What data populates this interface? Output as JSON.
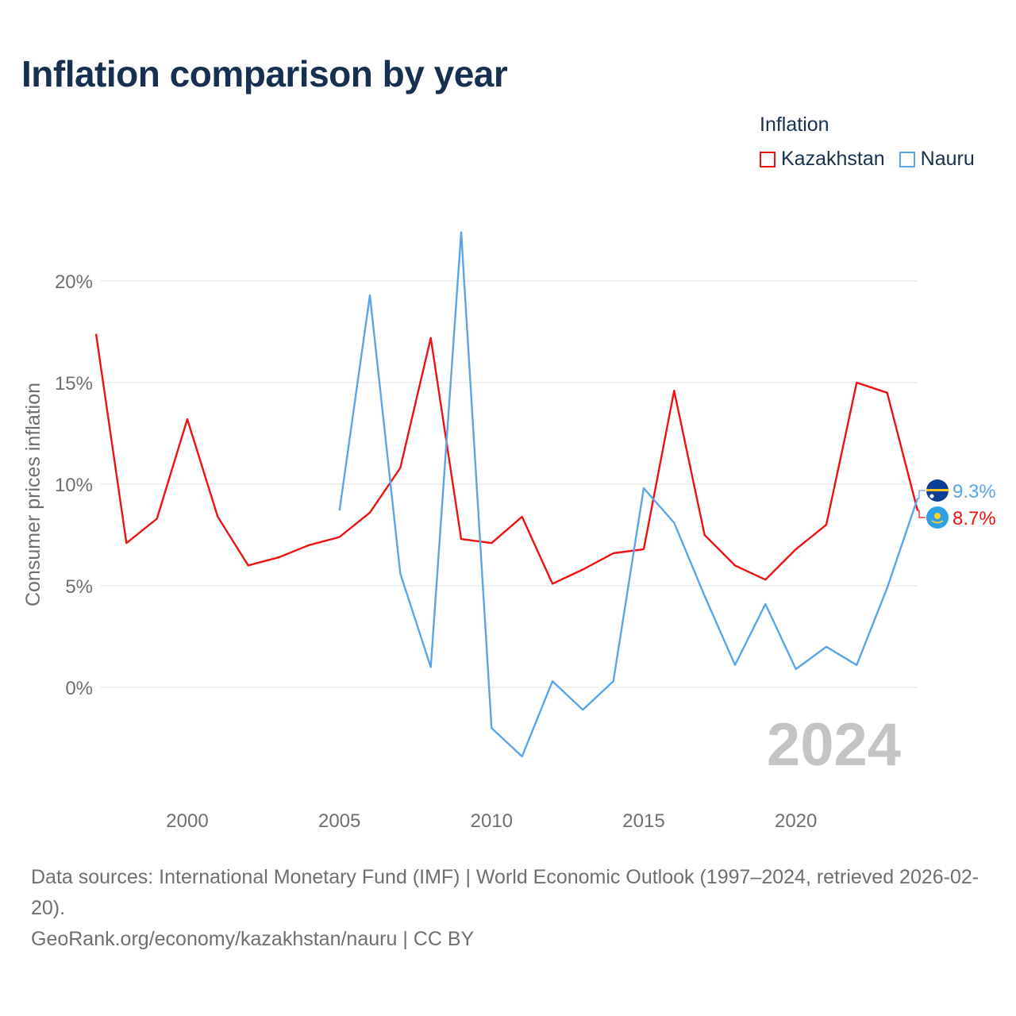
{
  "title": "Inflation comparison by year",
  "legend": {
    "title": "Inflation",
    "items": [
      {
        "label": "Kazakhstan",
        "color": "#ee1111"
      },
      {
        "label": "Nauru",
        "color": "#5aa5e8"
      }
    ]
  },
  "chart_data": {
    "type": "line",
    "title": "Inflation comparison by year",
    "xlabel": "",
    "ylabel": "Consumer prices inflation",
    "xlim": [
      1997,
      2024
    ],
    "ylim": [
      -5,
      23
    ],
    "grid": true,
    "x_ticks": [
      2000,
      2005,
      2010,
      2015,
      2020
    ],
    "x_tick_labels": [
      "2000",
      "2005",
      "2010",
      "2015",
      "2020"
    ],
    "y_ticks": [
      0,
      5,
      10,
      15,
      20
    ],
    "y_tick_labels": [
      "0%",
      "5%",
      "10%",
      "15%",
      "20%"
    ],
    "year_watermark": "2024",
    "series": [
      {
        "name": "Kazakhstan",
        "color": "#ee1111",
        "end_label": "8.7%",
        "points": [
          [
            1997,
            17.4
          ],
          [
            1998,
            7.1
          ],
          [
            1999,
            8.3
          ],
          [
            2000,
            13.2
          ],
          [
            2001,
            8.4
          ],
          [
            2002,
            6.0
          ],
          [
            2003,
            6.4
          ],
          [
            2004,
            7.0
          ],
          [
            2005,
            7.4
          ],
          [
            2006,
            8.6
          ],
          [
            2007,
            10.8
          ],
          [
            2008,
            17.2
          ],
          [
            2009,
            7.3
          ],
          [
            2010,
            7.1
          ],
          [
            2011,
            8.4
          ],
          [
            2012,
            5.1
          ],
          [
            2013,
            5.8
          ],
          [
            2014,
            6.6
          ],
          [
            2015,
            6.8
          ],
          [
            2016,
            14.6
          ],
          [
            2017,
            7.5
          ],
          [
            2018,
            6.0
          ],
          [
            2019,
            5.3
          ],
          [
            2020,
            6.8
          ],
          [
            2021,
            8.0
          ],
          [
            2022,
            15.0
          ],
          [
            2023,
            14.5
          ],
          [
            2024,
            8.7
          ]
        ]
      },
      {
        "name": "Nauru",
        "color": "#5aa5e8",
        "end_label": "9.3%",
        "points": [
          [
            2005,
            8.7
          ],
          [
            2006,
            19.3
          ],
          [
            2007,
            5.6
          ],
          [
            2008,
            1.0
          ],
          [
            2009,
            22.4
          ],
          [
            2010,
            -2.0
          ],
          [
            2011,
            -3.4
          ],
          [
            2012,
            0.3
          ],
          [
            2013,
            -1.1
          ],
          [
            2014,
            0.3
          ],
          [
            2015,
            9.8
          ],
          [
            2016,
            8.1
          ],
          [
            2017,
            4.5
          ],
          [
            2018,
            1.1
          ],
          [
            2019,
            4.1
          ],
          [
            2020,
            0.9
          ],
          [
            2021,
            2.0
          ],
          [
            2022,
            1.1
          ],
          [
            2023,
            4.9
          ],
          [
            2024,
            9.3
          ]
        ]
      }
    ]
  },
  "footer": {
    "sources": "Data sources: International Monetary Fund (IMF) | World Economic Outlook (1997–2024, retrieved 2026-02-20).",
    "attribution": "GeoRank.org/economy/kazakhstan/nauru | CC BY"
  }
}
